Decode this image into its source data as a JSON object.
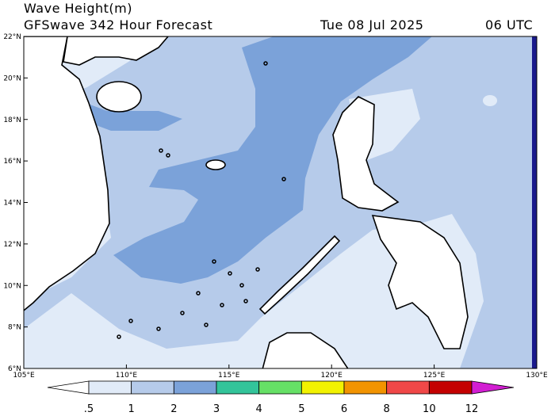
{
  "header": {
    "title": "Wave Height(m)",
    "subtitle": "GFSwave 342 Hour Forecast",
    "date": "Tue 08 Jul 2025",
    "time": "06 UTC"
  },
  "map": {
    "lat_labels": [
      "22°N",
      "20°N",
      "18°N",
      "16°N",
      "14°N",
      "12°N",
      "10°N",
      "8°N",
      "6°N"
    ],
    "lon_labels": [
      "105°E",
      "110°E",
      "115°E",
      "120°E",
      "125°E",
      "130°E"
    ]
  },
  "colorbar": {
    "labels": [
      ".5",
      "1",
      "2",
      "3",
      "4",
      "5",
      "6",
      "8",
      "10",
      "12"
    ],
    "colors": [
      "#ffffff",
      "#e1ebf8",
      "#b6cbea",
      "#7ba2d9",
      "#33c49a",
      "#66e066",
      "#f2f200",
      "#f29400",
      "#f04848",
      "#c40000",
      "#d21ed2"
    ]
  }
}
